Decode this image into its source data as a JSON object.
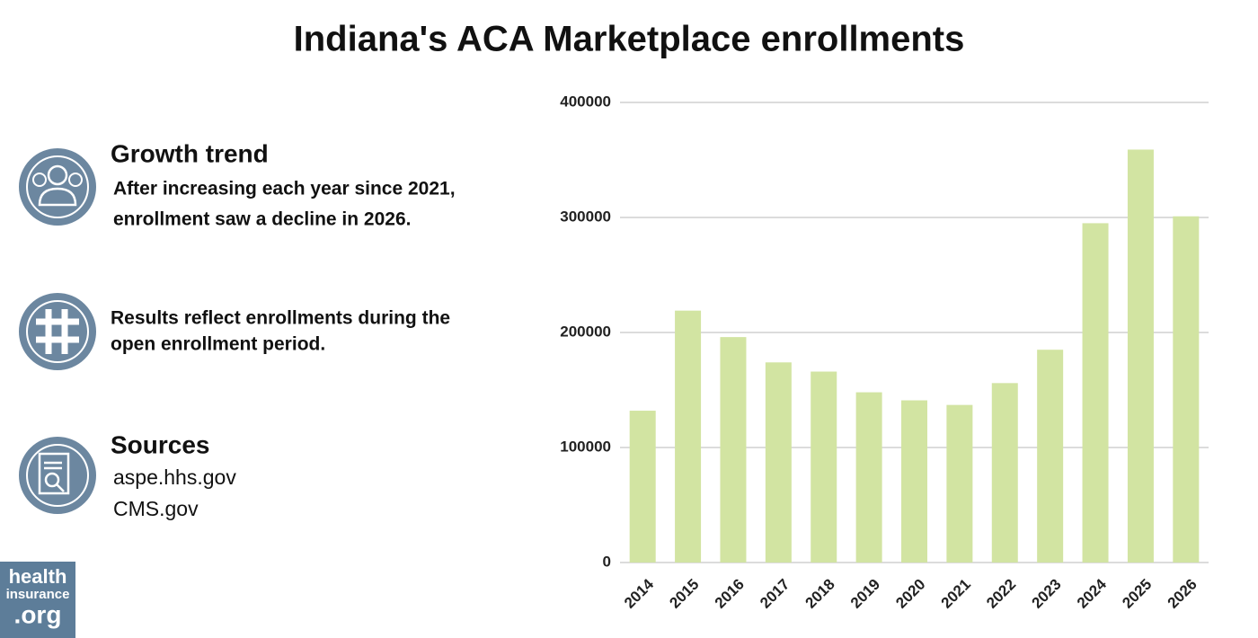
{
  "chart_data": {
    "type": "bar",
    "title": "Indiana's ACA Marketplace enrollments",
    "categories": [
      "2014",
      "2015",
      "2016",
      "2017",
      "2018",
      "2019",
      "2020",
      "2021",
      "2022",
      "2023",
      "2024",
      "2025",
      "2026"
    ],
    "values": [
      132000,
      219000,
      196000,
      174000,
      166000,
      148000,
      141000,
      137000,
      156000,
      185000,
      295000,
      359000,
      301000
    ],
    "color": "#d2e4a2",
    "ylim": [
      0,
      400000
    ],
    "yticks": [
      0,
      100000,
      200000,
      300000,
      400000
    ],
    "grid": true
  },
  "panel": {
    "growth": {
      "heading": "Growth trend",
      "lines": [
        "After increasing each year since 2021,",
        "enrollment saw a decline in 2026."
      ]
    },
    "note": {
      "lines": [
        "Results reflect enrollments during the",
        "open enrollment period."
      ]
    },
    "sources": {
      "heading": "Sources",
      "lines": [
        "aspe.hhs.gov",
        "CMS.gov"
      ]
    }
  },
  "logo": {
    "lines": [
      "health",
      "insurance",
      ".org"
    ]
  }
}
